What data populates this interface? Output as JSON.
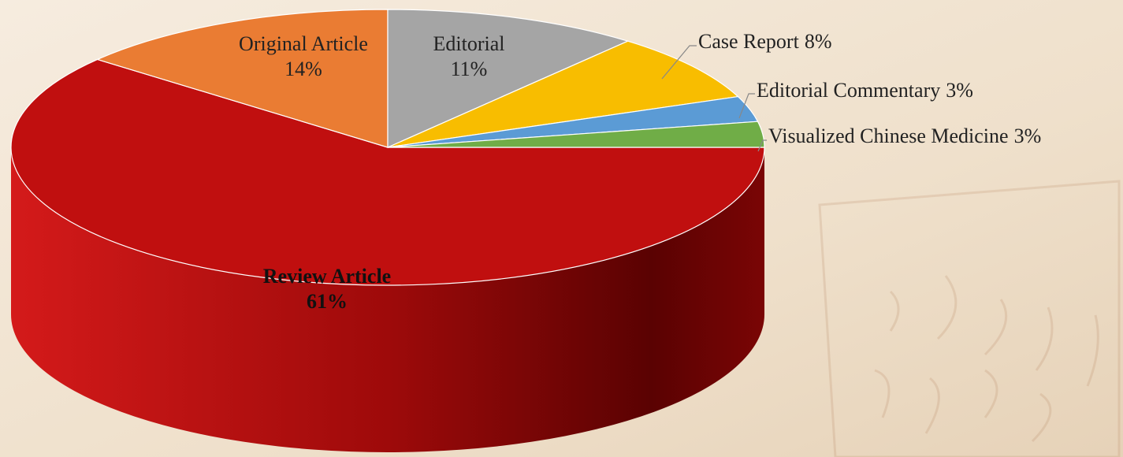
{
  "chart_data": {
    "type": "pie",
    "categories": [
      "Review Article",
      "Original Article",
      "Editorial",
      "Case Report",
      "Editorial Commentary",
      "Visualized Chinese Medicine"
    ],
    "values": [
      61,
      14,
      11,
      8,
      3,
      3
    ],
    "value_labels": [
      "61%",
      "14%",
      "11%",
      "8%",
      "3%",
      "3%"
    ],
    "colors": [
      "#c00f0f",
      "#ea7c33",
      "#a5a5a5",
      "#f8bd00",
      "#5b9bd5",
      "#70ad47"
    ]
  }
}
